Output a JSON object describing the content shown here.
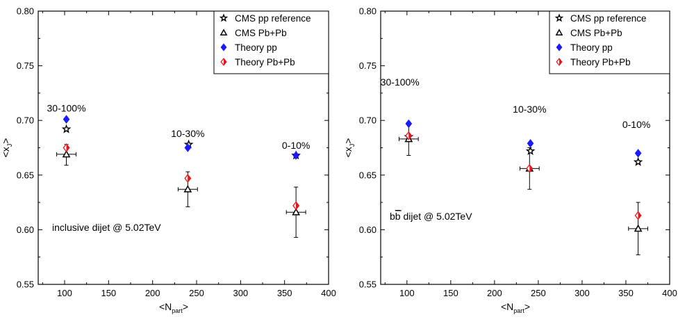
{
  "chart_data": [
    {
      "type": "scatter",
      "xlabel": "<N",
      "xlabel_sub": "part",
      "xlabel_end": ">",
      "ylabel": "<x",
      "ylabel_sub": "J",
      "ylabel_end": ">",
      "xlim": [
        70,
        400
      ],
      "ylim": [
        0.55,
        0.8
      ],
      "xticks": [
        100,
        150,
        200,
        250,
        300,
        350,
        400
      ],
      "yticks": [
        0.55,
        0.6,
        0.65,
        0.7,
        0.75,
        0.8
      ],
      "annotation": "inclusive dijet @ 5.02TeV",
      "legend_position": "top-right",
      "centrality_labels": [
        {
          "text": "30-100%",
          "x": 102,
          "y": 0.708
        },
        {
          "text": "10-30%",
          "x": 240,
          "y": 0.685
        },
        {
          "text": "0-10%",
          "x": 363,
          "y": 0.674
        }
      ],
      "series": [
        {
          "name": "CMS pp reference",
          "marker": "star-open",
          "color": "#000000",
          "points": [
            {
              "x": 102,
              "y": 0.692
            },
            {
              "x": 241,
              "y": 0.678
            },
            {
              "x": 363,
              "y": 0.668
            }
          ]
        },
        {
          "name": "CMS Pb+Pb",
          "marker": "triangle-open",
          "color": "#000000",
          "points": [
            {
              "x": 102,
              "y": 0.669,
              "ylow": 0.659,
              "yhigh": 0.678,
              "xerr": 11
            },
            {
              "x": 240,
              "y": 0.637,
              "ylow": 0.621,
              "yhigh": 0.653,
              "xerr": 11
            },
            {
              "x": 363,
              "y": 0.616,
              "ylow": 0.593,
              "yhigh": 0.639,
              "xerr": 11
            }
          ]
        },
        {
          "name": "Theory pp",
          "marker": "diamond-filled",
          "color": "#1a1aff",
          "points": [
            {
              "x": 102,
              "y": 0.701
            },
            {
              "x": 240,
              "y": 0.675
            },
            {
              "x": 363,
              "y": 0.668
            }
          ]
        },
        {
          "name": "Theory Pb+Pb",
          "marker": "diamond-half",
          "color": "#e8141c",
          "points": [
            {
              "x": 102,
              "y": 0.675
            },
            {
              "x": 240,
              "y": 0.647
            },
            {
              "x": 363,
              "y": 0.622
            }
          ]
        }
      ]
    },
    {
      "type": "scatter",
      "xlabel": "<N",
      "xlabel_sub": "part",
      "xlabel_end": ">",
      "ylabel": "<x",
      "ylabel_sub": "J",
      "ylabel_end": ">",
      "xlim": [
        70,
        400
      ],
      "ylim": [
        0.55,
        0.8
      ],
      "xticks": [
        100,
        150,
        200,
        250,
        300,
        350,
        400
      ],
      "yticks": [
        0.55,
        0.6,
        0.65,
        0.7,
        0.75,
        0.8
      ],
      "annotation_b": "b",
      "annotation_bbar": "b",
      "annotation": " dijet @ 5.02TeV",
      "legend_position": "top-right",
      "centrality_labels": [
        {
          "text": "30-100%",
          "x": 92,
          "y": 0.732
        },
        {
          "text": "10-30%",
          "x": 240,
          "y": 0.707
        },
        {
          "text": "0-10%",
          "x": 362,
          "y": 0.693
        }
      ],
      "series": [
        {
          "name": "CMS pp reference",
          "marker": "star-open",
          "color": "#000000",
          "points": [
            {
              "x": 102,
              "y": 0.685
            },
            {
              "x": 241,
              "y": 0.672
            },
            {
              "x": 364,
              "y": 0.662
            }
          ]
        },
        {
          "name": "CMS Pb+Pb",
          "marker": "triangle-open",
          "color": "#000000",
          "points": [
            {
              "x": 102,
              "y": 0.683,
              "ylow": 0.668,
              "yhigh": 0.697,
              "xerr": 11
            },
            {
              "x": 240,
              "y": 0.656,
              "ylow": 0.637,
              "yhigh": 0.675,
              "xerr": 11
            },
            {
              "x": 364,
              "y": 0.601,
              "ylow": 0.577,
              "yhigh": 0.625,
              "xerr": 11
            }
          ]
        },
        {
          "name": "Theory pp",
          "marker": "diamond-filled",
          "color": "#1a1aff",
          "points": [
            {
              "x": 102,
              "y": 0.697
            },
            {
              "x": 241,
              "y": 0.679
            },
            {
              "x": 364,
              "y": 0.67
            }
          ]
        },
        {
          "name": "Theory Pb+Pb",
          "marker": "diamond-half",
          "color": "#e8141c",
          "points": [
            {
              "x": 102,
              "y": 0.686
            },
            {
              "x": 240,
              "y": 0.656
            },
            {
              "x": 364,
              "y": 0.613
            }
          ]
        }
      ]
    }
  ]
}
